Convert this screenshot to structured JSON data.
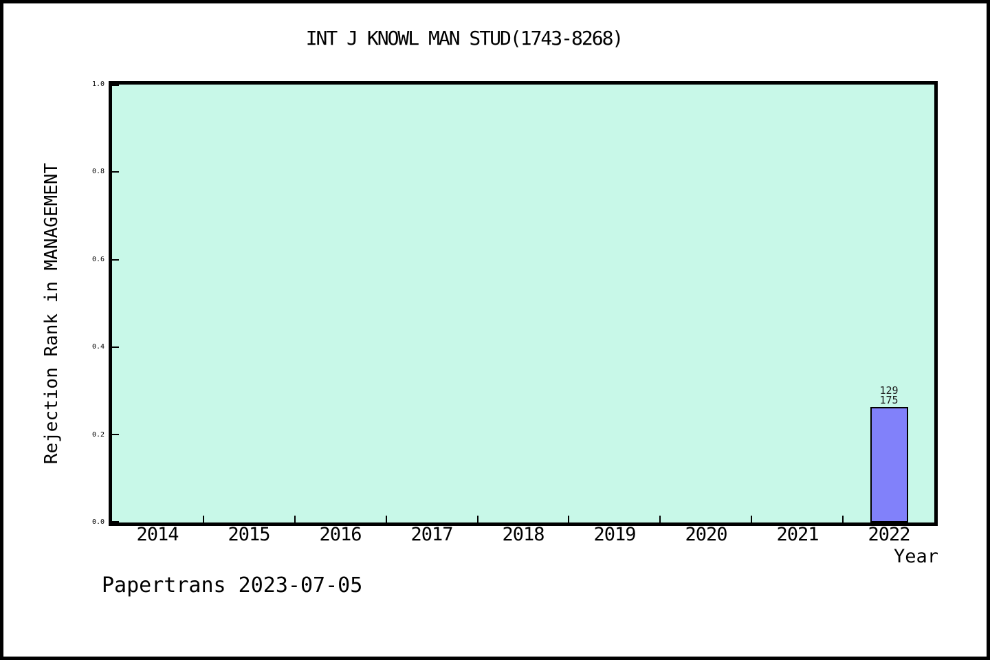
{
  "chart_data": {
    "type": "bar",
    "title": "INT J KNOWL MAN STUD(1743-8268)",
    "xlabel": "Year",
    "ylabel": "Rejection Rank in MANAGEMENT",
    "categories": [
      "2014",
      "2015",
      "2016",
      "2017",
      "2018",
      "2019",
      "2020",
      "2021",
      "2022"
    ],
    "values": [
      null,
      null,
      null,
      null,
      null,
      null,
      null,
      null,
      0.263
    ],
    "ylim": [
      0.0,
      1.0
    ],
    "ytick_labels": [
      "0.0",
      "0.2",
      "0.4",
      "0.6",
      "0.8",
      "1.0"
    ],
    "grid": false,
    "legend": null,
    "bar_annotations": {
      "2022": [
        "129",
        "175"
      ]
    }
  },
  "footer": {
    "text": "Papertrans 2023-07-05"
  },
  "colors": {
    "plot_background": "#c8f8e8",
    "bar_fill": "#8181fa",
    "frame": "#000000",
    "page_background": "#ffffff"
  }
}
